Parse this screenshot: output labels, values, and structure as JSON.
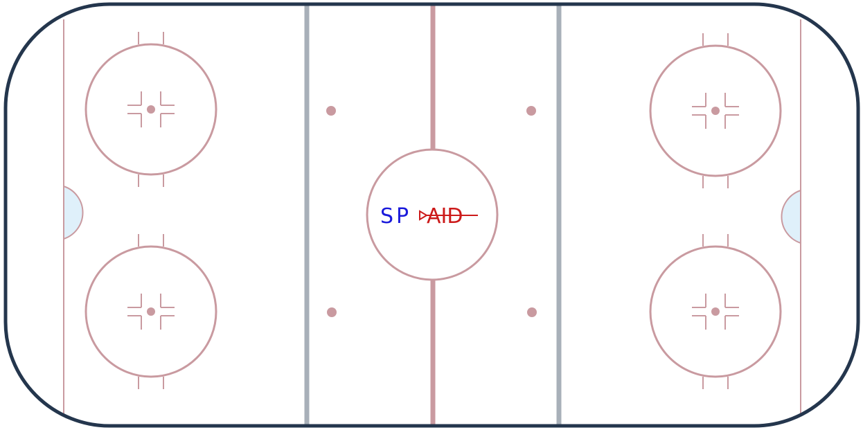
{
  "logo": {
    "part1": "SP",
    "part2": "AID"
  },
  "colors": {
    "board": "#24364d",
    "ice": "#ffffff",
    "red_lines": "#c99aa0",
    "blue_lines": "#a8b0b9",
    "crease": "#dff0fa",
    "logo_blue": "#1a1adb",
    "logo_red": "#cc1a1a"
  }
}
